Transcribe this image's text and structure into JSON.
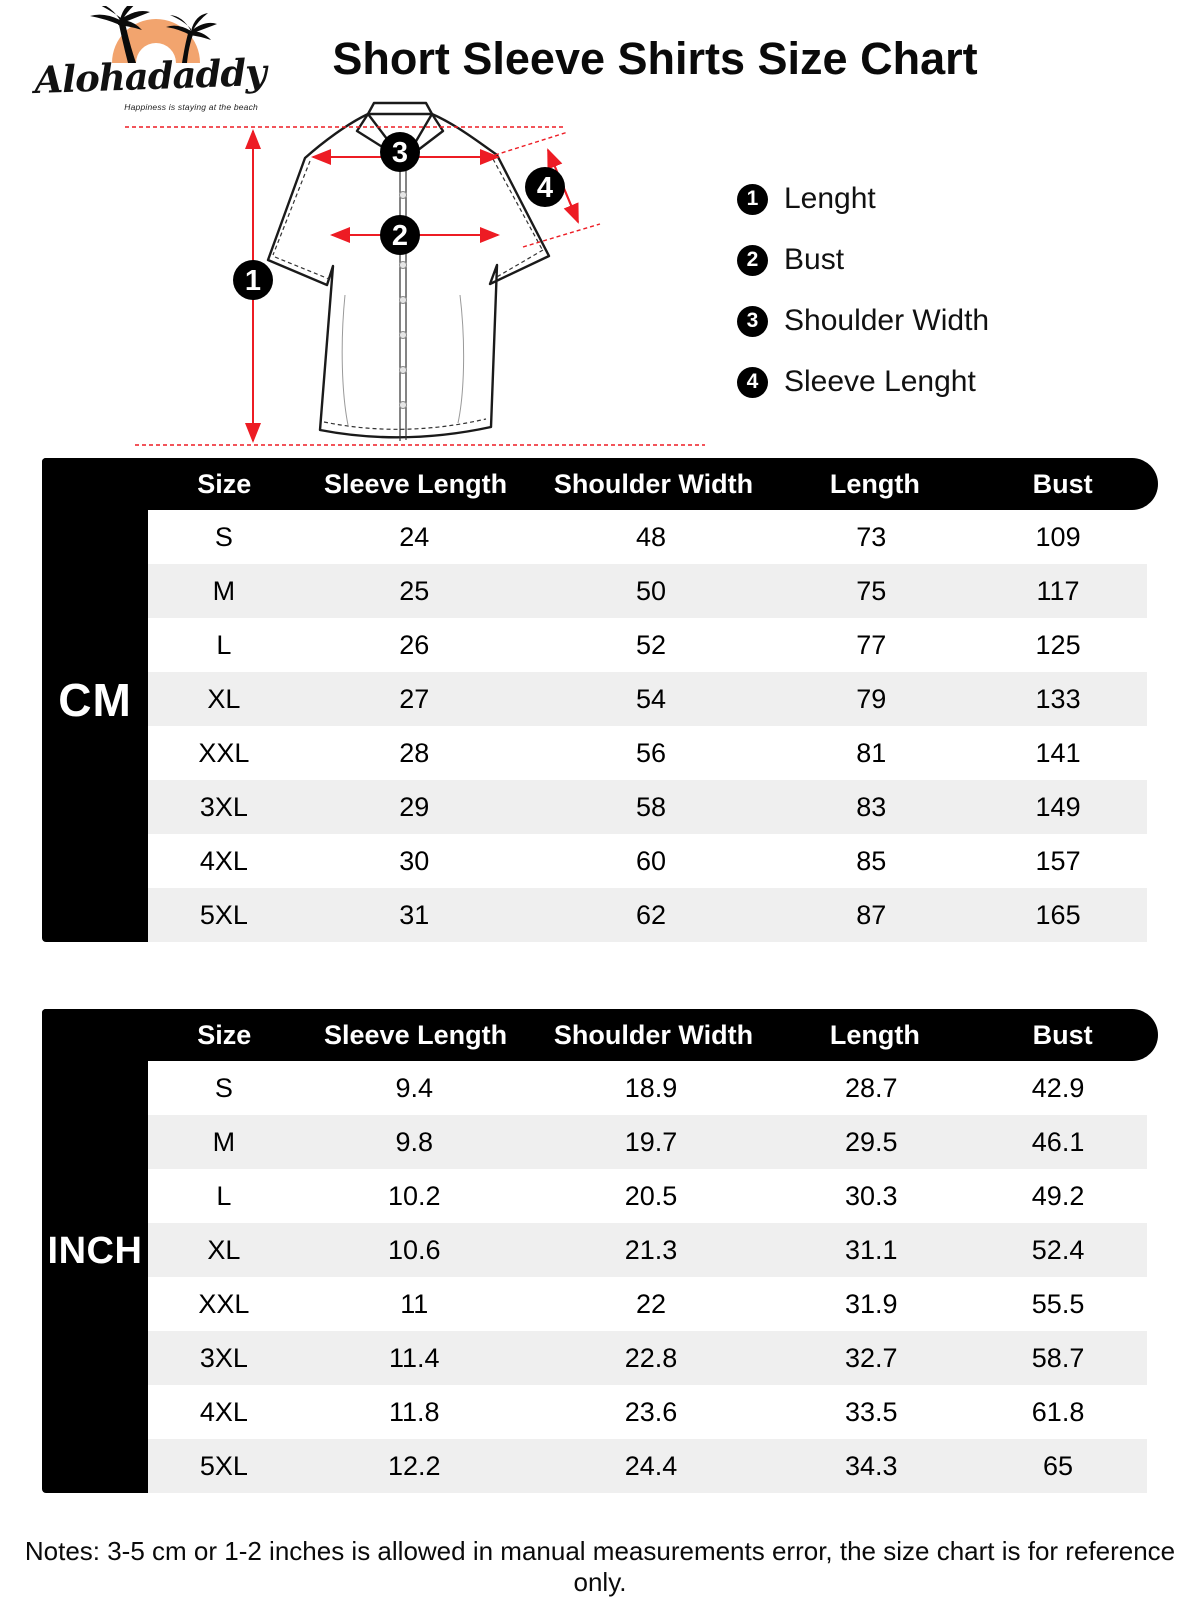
{
  "brand": {
    "name": "Alohadaddy",
    "tagline": "Happiness is staying at the beach"
  },
  "title": "Short Sleeve Shirts Size Chart",
  "diagram": {
    "legend": [
      {
        "num": "1",
        "label": "Lenght"
      },
      {
        "num": "2",
        "label": "Bust"
      },
      {
        "num": "3",
        "label": "Shoulder Width"
      },
      {
        "num": "4",
        "label": "Sleeve Lenght"
      }
    ]
  },
  "tables": [
    {
      "unit": "CM",
      "columns": [
        "Size",
        "Sleeve Length",
        "Shoulder Width",
        "Length",
        "Bust"
      ],
      "rows": [
        [
          "S",
          "24",
          "48",
          "73",
          "109"
        ],
        [
          "M",
          "25",
          "50",
          "75",
          "117"
        ],
        [
          "L",
          "26",
          "52",
          "77",
          "125"
        ],
        [
          "XL",
          "27",
          "54",
          "79",
          "133"
        ],
        [
          "XXL",
          "28",
          "56",
          "81",
          "141"
        ],
        [
          "3XL",
          "29",
          "58",
          "83",
          "149"
        ],
        [
          "4XL",
          "30",
          "60",
          "85",
          "157"
        ],
        [
          "5XL",
          "31",
          "62",
          "87",
          "165"
        ]
      ]
    },
    {
      "unit": "INCH",
      "columns": [
        "Size",
        "Sleeve Length",
        "Shoulder Width",
        "Length",
        "Bust"
      ],
      "rows": [
        [
          "S",
          "9.4",
          "18.9",
          "28.7",
          "42.9"
        ],
        [
          "M",
          "9.8",
          "19.7",
          "29.5",
          "46.1"
        ],
        [
          "L",
          "10.2",
          "20.5",
          "30.3",
          "49.2"
        ],
        [
          "XL",
          "10.6",
          "21.3",
          "31.1",
          "52.4"
        ],
        [
          "XXL",
          "11",
          "22",
          "31.9",
          "55.5"
        ],
        [
          "3XL",
          "11.4",
          "22.8",
          "32.7",
          "58.7"
        ],
        [
          "4XL",
          "11.8",
          "23.6",
          "33.5",
          "61.8"
        ],
        [
          "5XL",
          "12.2",
          "24.4",
          "34.3",
          "65"
        ]
      ]
    }
  ],
  "notes": "Notes: 3-5 cm or 1-2 inches is allowed in manual measurements error, the size chart is for reference only.",
  "colors": {
    "accent_red": "#ED1C24",
    "logo_orange": "#F2A46E",
    "row_alt": "#EFEFEF",
    "table_black": "#000000"
  }
}
